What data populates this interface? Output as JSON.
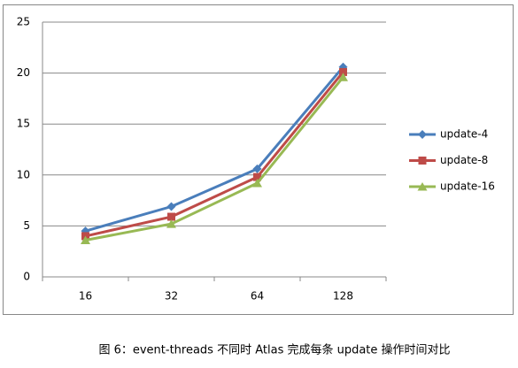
{
  "chart_data": {
    "type": "line",
    "caption": "图 6：event-threads 不同时 Atlas 完成每条 update 操作时间对比",
    "categories": [
      "16",
      "32",
      "64",
      "128"
    ],
    "series": [
      {
        "name": "update-4",
        "color": "#4a7ebb",
        "marker": "diamond",
        "values": [
          4.5,
          6.9,
          10.6,
          20.6
        ]
      },
      {
        "name": "update-8",
        "color": "#be4b48",
        "marker": "square",
        "values": [
          4.0,
          5.9,
          9.8,
          20.1
        ]
      },
      {
        "name": "update-16",
        "color": "#98b954",
        "marker": "triangle",
        "values": [
          3.6,
          5.2,
          9.2,
          19.6
        ]
      }
    ],
    "ylim": [
      0,
      25
    ],
    "yticks": [
      0,
      5,
      10,
      15,
      20,
      25
    ],
    "grid": true,
    "legend": "right"
  }
}
